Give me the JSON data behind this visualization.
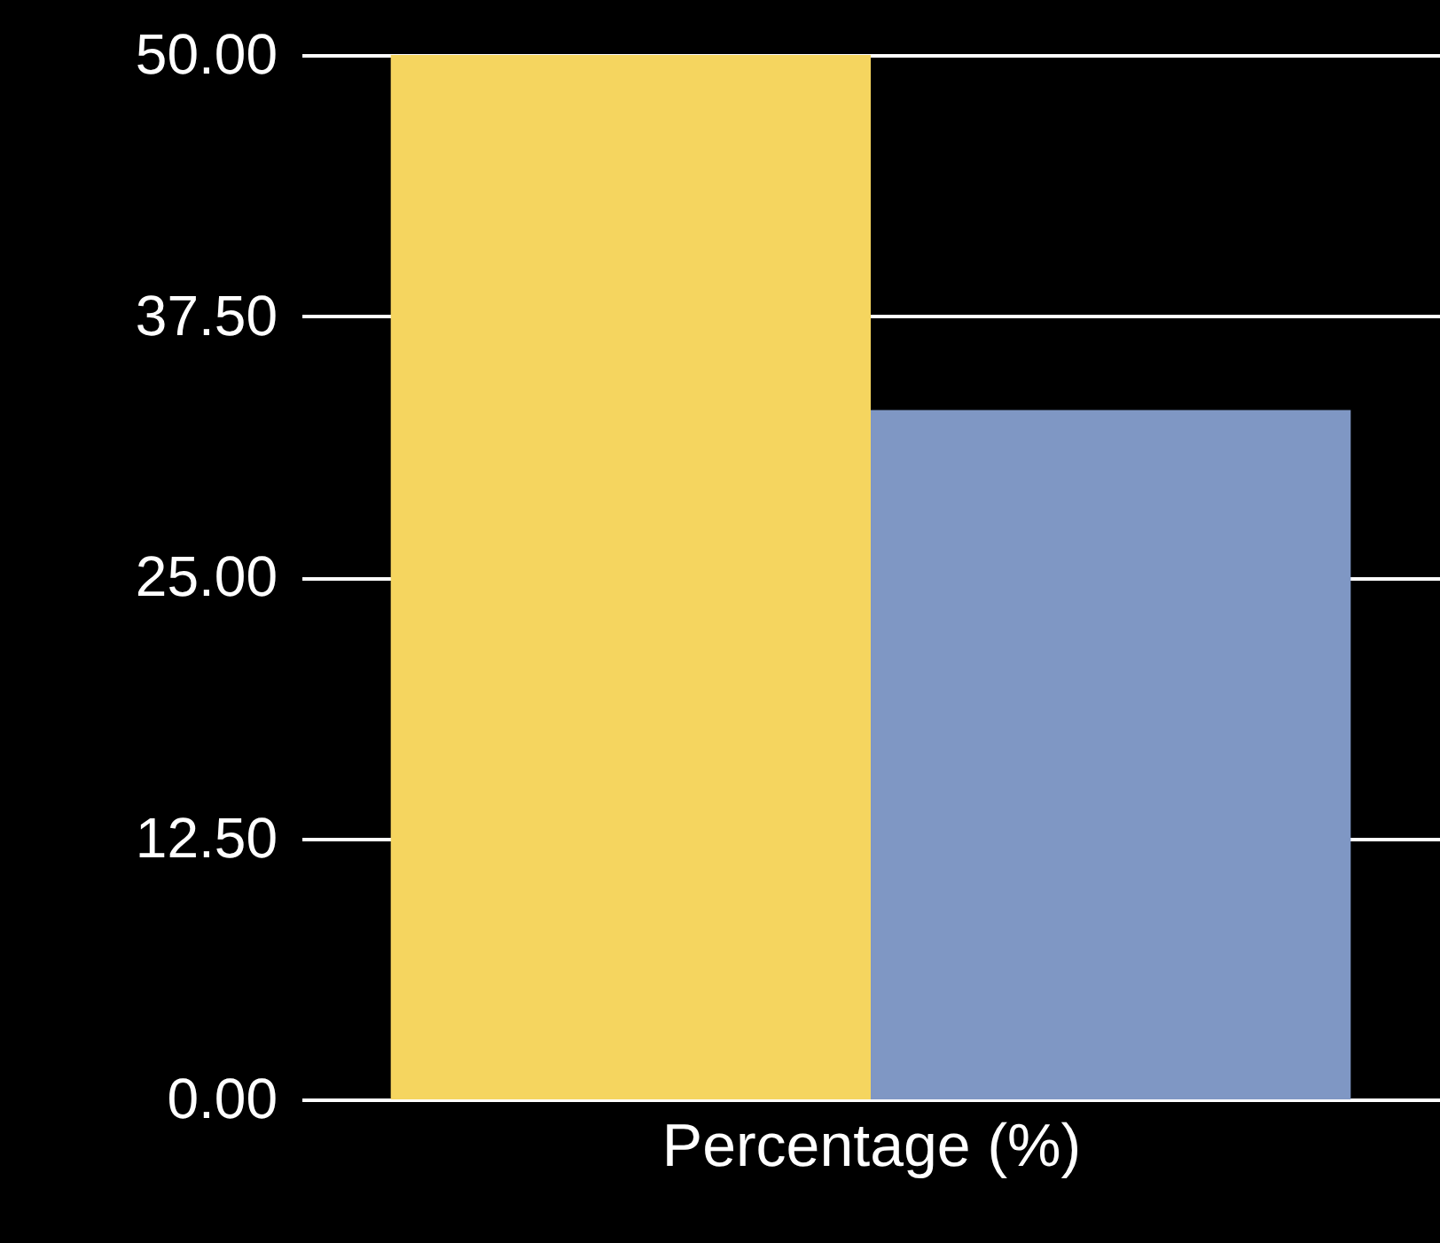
{
  "chart_data": {
    "type": "bar",
    "xlabel": "Percentage (%)",
    "categories": [
      null
    ],
    "series": [
      {
        "color": "#f5d55f",
        "values": [
          50
        ]
      },
      {
        "color": "#7f97c4",
        "values": [
          33
        ]
      }
    ],
    "ylim": [
      0,
      50
    ],
    "yticks": [
      {
        "value": 0,
        "label": "0.00"
      },
      {
        "value": 12.5,
        "label": "12.50"
      },
      {
        "value": 25,
        "label": "25.00"
      },
      {
        "value": 37.5,
        "label": "37.50"
      },
      {
        "value": 50,
        "label": "50.00"
      }
    ],
    "grid": "y"
  }
}
